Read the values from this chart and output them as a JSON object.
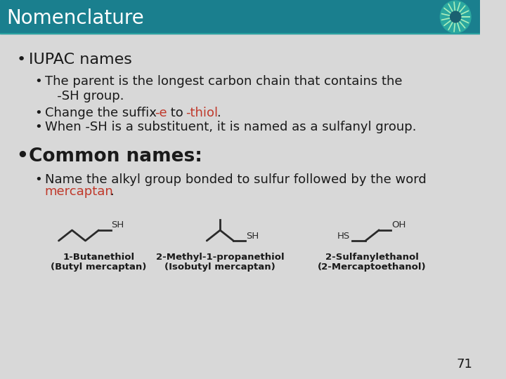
{
  "title": "Nomenclature",
  "title_bg_color": "#1a7f8e",
  "title_text_color": "#ffffff",
  "slide_bg_color": "#d8d8d8",
  "body_text_color": "#1a1a1a",
  "red_color": "#c0392b",
  "bullet1_header": "IUPAC names",
  "bullet1_sub1": "The parent is the longest carbon chain that contains the\n   -SH group.",
  "bullet1_sub2_plain": "Change the suffix ",
  "bullet1_sub2_red1": "-e",
  "bullet1_sub2_mid": " to ",
  "bullet1_sub2_red2": "-thiol",
  "bullet1_sub2_end": ".",
  "bullet1_sub3": "When -SH is a substituent, it is named as a sulfanyl group.",
  "bullet2_header": "Common names:",
  "bullet2_sub1_line1": "Name the alkyl group bonded to sulfur followed by the word",
  "bullet2_sub1_red": "mercaptan",
  "bullet2_sub1_end": ".",
  "compound1_name": "1-Butanethiol",
  "compound1_common": "(Butyl mercaptan)",
  "compound2_name": "2-Methyl-1-propanethiol",
  "compound2_common": "(Isobutyl mercaptan)",
  "compound3_name": "2-Sulfanylethanol",
  "compound3_common": "(2-Mercaptoethanol)",
  "page_number": "71"
}
